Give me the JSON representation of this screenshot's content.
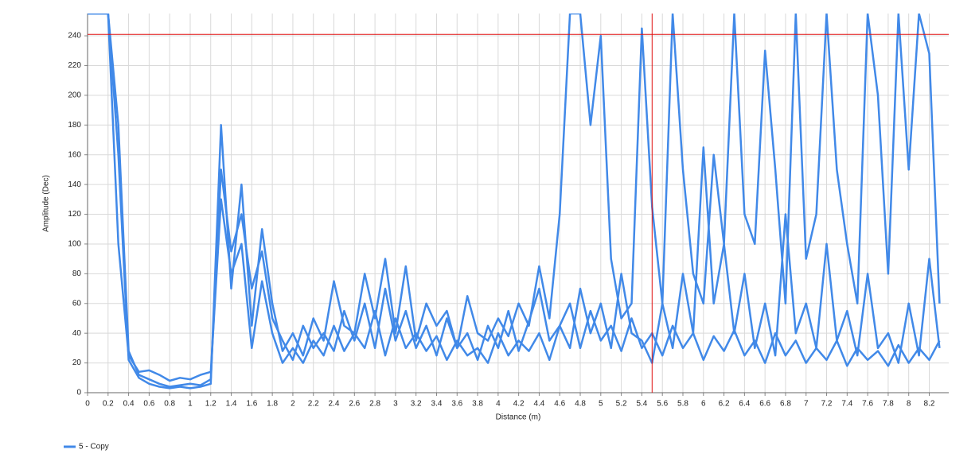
{
  "chart_data": {
    "type": "line",
    "y_label": "Amplitude (Dec)",
    "x_label": "Distance (m)",
    "x": [
      0,
      0.1,
      0.2,
      0.3,
      0.4,
      0.5,
      0.6,
      0.7,
      0.8,
      0.9,
      1,
      1.1,
      1.2,
      1.3,
      1.4,
      1.5,
      1.6,
      1.7,
      1.8,
      1.9,
      2,
      2.1,
      2.2,
      2.3,
      2.4,
      2.5,
      2.6,
      2.7,
      2.8,
      2.9,
      3,
      3.1,
      3.2,
      3.3,
      3.4,
      3.5,
      3.6,
      3.7,
      3.8,
      3.9,
      4,
      4.1,
      4.2,
      4.3,
      4.4,
      4.5,
      4.6,
      4.7,
      4.8,
      4.9,
      5,
      5.1,
      5.2,
      5.3,
      5.4,
      5.5,
      5.6,
      5.7,
      5.8,
      5.9,
      6,
      6.1,
      6.2,
      6.3,
      6.4,
      6.5,
      6.6,
      6.7,
      6.8,
      6.9,
      7,
      7.1,
      7.2,
      7.3,
      7.4,
      7.5,
      7.6,
      7.7,
      7.8,
      7.9,
      8,
      8.1,
      8.2,
      8.3
    ],
    "series": [
      {
        "name": "5 - Copy",
        "color": "#4189e8",
        "values": [
          255,
          255,
          255,
          180,
          28,
          12,
          9,
          6,
          4,
          5,
          6,
          5,
          9,
          150,
          95,
          120,
          70,
          95,
          50,
          35,
          22,
          45,
          30,
          40,
          28,
          55,
          35,
          60,
          30,
          70,
          35,
          55,
          30,
          45,
          25,
          50,
          30,
          40,
          22,
          45,
          30,
          55,
          28,
          48,
          70,
          35,
          45,
          60,
          30,
          55,
          35,
          45,
          28,
          50,
          30,
          40,
          25,
          45,
          30,
          40,
          22,
          38,
          28,
          42,
          25,
          35,
          20,
          40,
          25,
          35,
          20,
          30,
          22,
          35,
          18,
          30,
          22,
          28,
          18,
          32,
          20,
          30,
          22,
          35
        ]
      },
      {
        "color": "#4189e8",
        "values": [
          255,
          255,
          255,
          160,
          22,
          10,
          6,
          4,
          3,
          4,
          3,
          4,
          6,
          180,
          70,
          140,
          45,
          110,
          60,
          28,
          40,
          25,
          50,
          35,
          75,
          45,
          40,
          80,
          50,
          90,
          40,
          85,
          35,
          60,
          45,
          55,
          30,
          65,
          40,
          35,
          50,
          38,
          60,
          45,
          85,
          50,
          120,
          255,
          255,
          180,
          240,
          90,
          50,
          60,
          245,
          125,
          60,
          255,
          150,
          80,
          60,
          160,
          100,
          255,
          120,
          100,
          230,
          150,
          60,
          255,
          90,
          120,
          255,
          150,
          100,
          60,
          255,
          200,
          80,
          255,
          150,
          255,
          228,
          60
        ]
      },
      {
        "color": "#4189e8",
        "values": [
          255,
          255,
          255,
          100,
          25,
          14,
          15,
          12,
          8,
          10,
          9,
          12,
          14,
          130,
          80,
          100,
          30,
          75,
          40,
          20,
          30,
          20,
          35,
          25,
          45,
          28,
          40,
          30,
          55,
          25,
          50,
          30,
          40,
          28,
          38,
          22,
          35,
          25,
          30,
          20,
          40,
          25,
          35,
          28,
          40,
          22,
          45,
          30,
          70,
          40,
          60,
          30,
          80,
          40,
          35,
          20,
          60,
          30,
          80,
          40,
          165,
          60,
          100,
          40,
          80,
          30,
          60,
          25,
          120,
          40,
          60,
          30,
          100,
          35,
          55,
          25,
          80,
          30,
          40,
          20,
          60,
          25,
          90,
          30
        ]
      }
    ],
    "xlim": [
      0,
      8.39
    ],
    "ylim": [
      0,
      255
    ],
    "xticks": [
      0,
      0.2,
      0.4,
      0.6,
      0.8,
      1,
      1.2,
      1.4,
      1.6,
      1.8,
      2,
      2.2,
      2.4,
      2.6,
      2.8,
      3,
      3.2,
      3.4,
      3.6,
      3.8,
      4,
      4.2,
      4.4,
      4.6,
      4.8,
      5,
      5.2,
      5.4,
      5.6,
      5.8,
      6,
      6.2,
      6.4,
      6.6,
      6.8,
      7,
      7.2,
      7.4,
      7.6,
      7.8,
      8,
      8.2
    ],
    "yticks": [
      0,
      20,
      40,
      60,
      80,
      100,
      120,
      140,
      160,
      180,
      200,
      220,
      240
    ],
    "grid": true,
    "hline": 241,
    "vline": 5.5,
    "reference_color": "#e01010",
    "legend": "bottom-left"
  }
}
